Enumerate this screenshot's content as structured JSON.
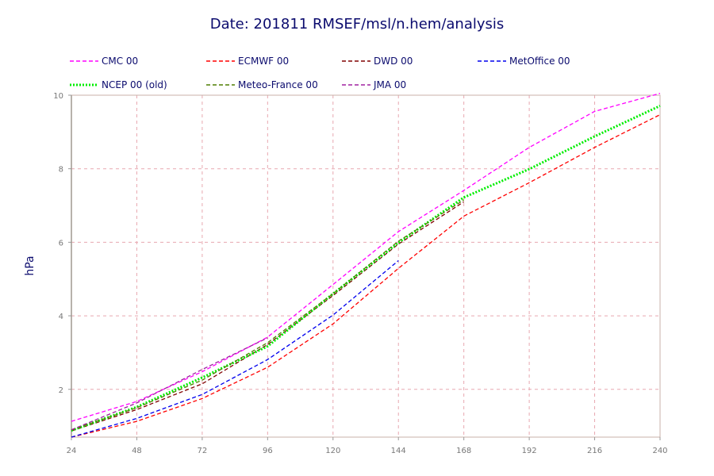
{
  "chart_data": {
    "type": "line",
    "title": "Date: 201811 RMSEF/msl/n.hem/analysis",
    "xlabel": "",
    "ylabel": "hPa",
    "x": [
      24,
      48,
      72,
      96,
      120,
      144,
      168,
      192,
      216,
      240
    ],
    "xlim": [
      24,
      240
    ],
    "ylim": [
      0.7,
      10
    ],
    "yticks": [
      2,
      4,
      6,
      8,
      10
    ],
    "grid": true,
    "legend_position": "top",
    "series": [
      {
        "name": "CMC 00",
        "color": "#ff00ff",
        "dash": "dashed",
        "values": [
          1.13,
          1.67,
          2.48,
          3.42,
          4.85,
          6.29,
          7.41,
          8.58,
          9.56,
          10.05
        ]
      },
      {
        "name": "ECMWF 00",
        "color": "#ff0000",
        "dash": "dashed",
        "values": [
          0.7,
          1.13,
          1.75,
          2.6,
          3.78,
          5.29,
          6.71,
          7.62,
          8.58,
          9.47
        ]
      },
      {
        "name": "DWD 00",
        "color": "#800000",
        "dash": "dashed",
        "values": [
          0.87,
          1.45,
          2.15,
          3.22,
          4.55,
          5.95,
          7.1,
          null,
          null,
          null
        ]
      },
      {
        "name": "MetOffice 00",
        "color": "#0000ee",
        "dash": "dashed",
        "values": [
          0.7,
          1.21,
          1.86,
          2.81,
          4.02,
          5.5,
          null,
          null,
          null,
          null
        ]
      },
      {
        "name": "NCEP 00 (old)",
        "color": "#00ee00",
        "dash": "dotted",
        "values": [
          0.88,
          1.52,
          2.32,
          3.17,
          4.6,
          5.99,
          7.22,
          7.99,
          8.88,
          9.71
        ]
      },
      {
        "name": "Meteo-France 00",
        "color": "#4f7f00",
        "dash": "dashed",
        "values": [
          0.9,
          1.5,
          2.25,
          3.27,
          4.6,
          6.03,
          7.15,
          null,
          null,
          null
        ]
      },
      {
        "name": "JMA 00",
        "color": "#a020a0",
        "dash": "dashed",
        "values": [
          0.9,
          1.63,
          2.54,
          3.4,
          null,
          null,
          null,
          null,
          null,
          null
        ]
      }
    ]
  }
}
